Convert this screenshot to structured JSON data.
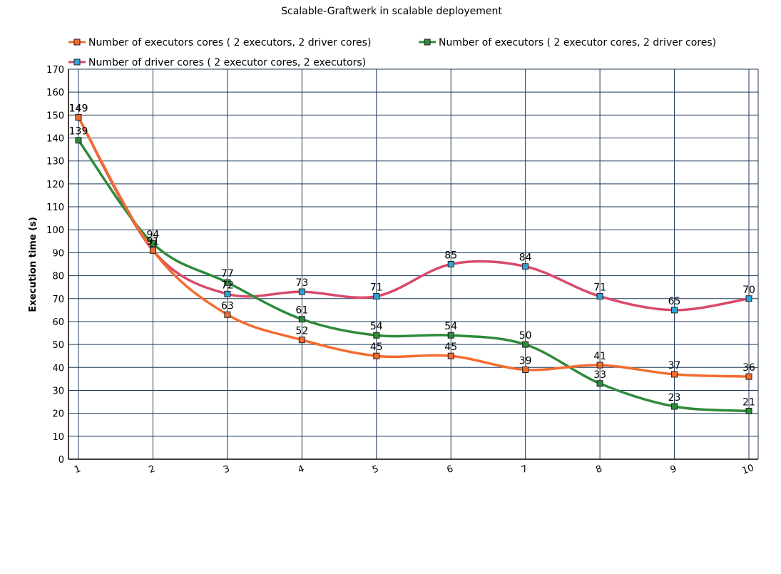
{
  "chart_data": {
    "type": "line",
    "title": "Scalable-Graftwerk in scalable deployement",
    "xlabel": "",
    "ylabel": "Execution time (s)",
    "categories": [
      "1",
      "2",
      "3",
      "4",
      "5",
      "6",
      "7",
      "8",
      "9",
      "10"
    ],
    "ylim": [
      0,
      170
    ],
    "yticks": [
      0,
      10,
      20,
      30,
      40,
      50,
      60,
      70,
      80,
      90,
      100,
      110,
      120,
      130,
      140,
      150,
      160,
      170
    ],
    "grid": true,
    "legend_position": "top",
    "series": [
      {
        "name": "Number of executors cores ( 2 executors, 2 driver cores)",
        "color": "#f26c30",
        "values": [
          149,
          91,
          63,
          52,
          45,
          45,
          39,
          41,
          37,
          36
        ]
      },
      {
        "name": "Number of executors ( 2 executor cores, 2 driver cores)",
        "color": "#2e8b3a",
        "values": [
          139,
          94,
          77,
          61,
          54,
          54,
          50,
          33,
          23,
          21
        ]
      },
      {
        "name": "Number of driver cores ( 2 executor cores, 2 executors)",
        "color": "#d94a6b",
        "marker_color": "#2aa6d9",
        "values": [
          149,
          91,
          72,
          73,
          71,
          85,
          84,
          71,
          65,
          70
        ]
      }
    ],
    "colors": {
      "grid": "#1f3a5a",
      "axis": "#000000"
    }
  }
}
